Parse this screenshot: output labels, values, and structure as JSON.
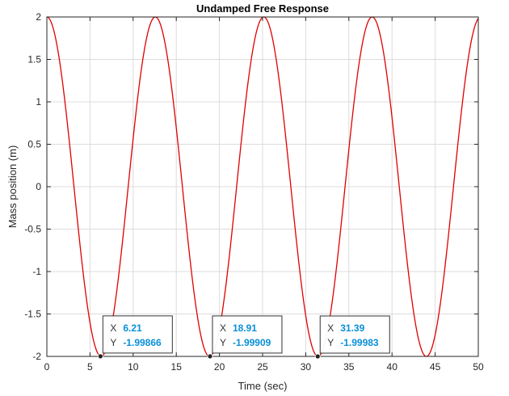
{
  "chart_data": {
    "type": "line",
    "title": "Undamped Free Response",
    "xlabel": "Time (sec)",
    "ylabel": "Mass position (m)",
    "xlim": [
      0,
      50
    ],
    "ylim": [
      -2,
      2
    ],
    "xticks": [
      "0",
      "5",
      "10",
      "15",
      "20",
      "25",
      "30",
      "35",
      "40",
      "45",
      "50"
    ],
    "yticks": [
      "-2",
      "-1.5",
      "-1",
      "-0.5",
      "0",
      "0.5",
      "1",
      "1.5",
      "2"
    ],
    "grid": true,
    "series": [
      {
        "color": "#e00000",
        "function": "2*cos(0.5*t)",
        "amplitude": 2,
        "omega": 0.5,
        "t_start": 0,
        "t_end": 50
      }
    ],
    "datatips": [
      {
        "x_label": "X",
        "y_label": "Y",
        "x": 6.21,
        "y": -1.99866,
        "x_text": "6.21",
        "y_text": "-1.99866"
      },
      {
        "x_label": "X",
        "y_label": "Y",
        "x": 18.91,
        "y": -1.99909,
        "x_text": "18.91",
        "y_text": "-1.99909"
      },
      {
        "x_label": "X",
        "y_label": "Y",
        "x": 31.39,
        "y": -1.99983,
        "x_text": "31.39",
        "y_text": "-1.99983"
      }
    ],
    "colors": {
      "line": "#e00000",
      "grid": "#dcdcdc",
      "axis": "#262626",
      "tip_value": "#0a8fd8"
    }
  }
}
